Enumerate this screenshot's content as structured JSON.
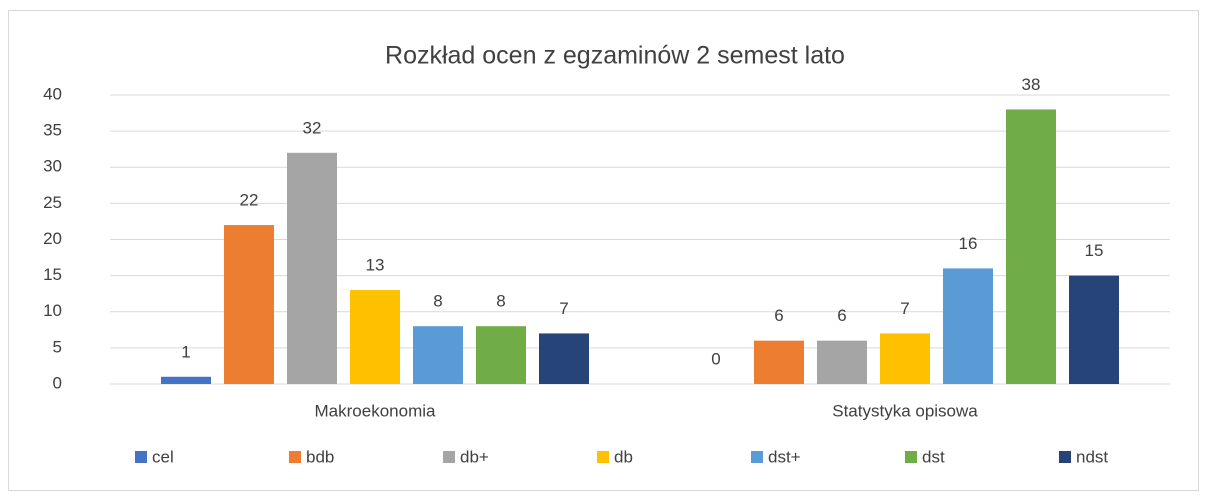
{
  "chart_data": {
    "type": "bar",
    "title": "Rozkład ocen z egzaminów 2 semest lato",
    "categories": [
      "Makroekonomia",
      "Statystyka opisowa"
    ],
    "series": [
      {
        "name": "cel",
        "color": "#4472c4",
        "values": [
          1,
          0
        ]
      },
      {
        "name": "bdb",
        "color": "#ed7d31",
        "values": [
          22,
          6
        ]
      },
      {
        "name": "db+",
        "color": "#a5a5a5",
        "values": [
          32,
          6
        ]
      },
      {
        "name": "db",
        "color": "#ffc000",
        "values": [
          13,
          7
        ]
      },
      {
        "name": "dst+",
        "color": "#5b9bd5",
        "values": [
          8,
          16
        ]
      },
      {
        "name": "dst",
        "color": "#70ad47",
        "values": [
          8,
          38
        ]
      },
      {
        "name": "ndst",
        "color": "#264478",
        "values": [
          7,
          15
        ]
      }
    ],
    "ylim": [
      0,
      40
    ],
    "yticks": [
      0,
      5,
      10,
      15,
      20,
      25,
      30,
      35,
      40
    ],
    "grid": true,
    "legend": "bottom"
  }
}
